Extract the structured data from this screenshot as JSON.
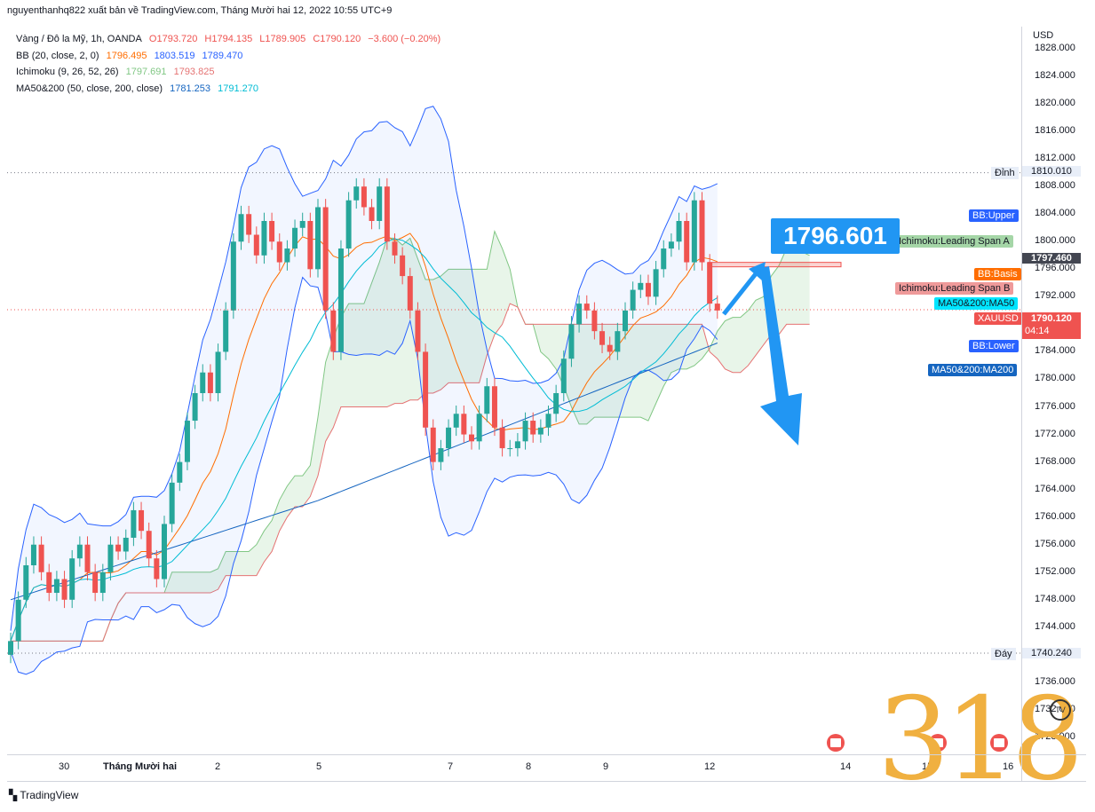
{
  "header": {
    "text": "nguyenthanhq822 xuất bản về TradingView.com, Tháng Mười hai 12, 2022 10:55 UTC+9"
  },
  "legend": {
    "symbol": "Vàng / Đô la Mỹ, 1h, OANDA",
    "o": "O1793.720",
    "h": "H1794.135",
    "l": "L1789.905",
    "c": "C1790.120",
    "chg": "−3.600 (−0.20%)",
    "bb_name": "BB (20, close, 2, 0)",
    "bb_basis": "1796.495",
    "bb_upper": "1803.519",
    "bb_lower": "1789.470",
    "ichi_name": "Ichimoku (9, 26, 52, 26)",
    "ichi_a": "1797.691",
    "ichi_b": "1793.825",
    "ma_name": "MA50&200 (50, close, 200, close)",
    "ma50": "1781.253",
    "ma200": "1791.270"
  },
  "axis": {
    "currency": "USD",
    "ticks": [
      "1828.000",
      "1824.000",
      "1820.000",
      "1816.000",
      "1812.000",
      "1808.000",
      "1804.000",
      "1800.000",
      "1796.000",
      "1792.000",
      "1788.000",
      "1784.000",
      "1780.000",
      "1776.000",
      "1772.000",
      "1768.000",
      "1764.000",
      "1760.000",
      "1756.000",
      "1752.000",
      "1748.000",
      "1744.000",
      "1740.000",
      "1736.000",
      "1732.000",
      "1728.000"
    ],
    "x_labels": [
      {
        "text": "30",
        "bold": false
      },
      {
        "text": "Tháng Mười hai",
        "bold": true
      },
      {
        "text": "2",
        "bold": false
      },
      {
        "text": "5",
        "bold": false
      },
      {
        "text": "7",
        "bold": false
      },
      {
        "text": "8",
        "bold": false
      },
      {
        "text": "9",
        "bold": false
      },
      {
        "text": "12",
        "bold": false
      },
      {
        "text": "14",
        "bold": false
      },
      {
        "text": "15",
        "bold": false
      },
      {
        "text": "16",
        "bold": false
      }
    ]
  },
  "tags": {
    "high_label": "Đỉnh",
    "high_value": "1810.010",
    "low_label": "Đáy",
    "low_value": "1740.240",
    "bb_upper": "BB:Upper",
    "ichi_a": "Ichimoku:Leading Span A",
    "ichi_value": "1797.460",
    "bb_basis": "BB:Basis",
    "ichi_b": "Ichimoku:Leading Span B",
    "ma50": "MA50&200:MA50",
    "symbol": "XAUUSD",
    "last_price": "1790.120",
    "countdown": "04:14",
    "bb_lower": "BB:Lower",
    "ma200": "MA50&200:MA200"
  },
  "annotation": {
    "target": "1796.601"
  },
  "watermark": "318",
  "footer": {
    "brand": "TradingView"
  },
  "colors": {
    "up": "#26a69a",
    "down": "#ef5350",
    "bb_band": "#2962ff",
    "bb_basis": "#ff6d00",
    "ichi_a": "#81c784",
    "ichi_b": "#e57373",
    "ma50": "#00bcd4",
    "ma200": "#1565c0",
    "arrow": "#2196f3"
  },
  "chart_data": {
    "type": "candlestick",
    "symbol": "XAUUSD",
    "timeframe": "1h",
    "ylim": [
      1728,
      1830
    ],
    "high_marker": 1810.01,
    "low_marker": 1740.24,
    "last_close": 1790.12,
    "target_level": 1796.601,
    "closes": [
      1742,
      1748,
      1753,
      1756,
      1752,
      1749,
      1751,
      1748,
      1754,
      1756,
      1752,
      1749,
      1752,
      1756,
      1755,
      1757,
      1761,
      1758,
      1754,
      1751,
      1759,
      1765,
      1768,
      1774,
      1778,
      1781,
      1778,
      1784,
      1790,
      1800,
      1804,
      1801,
      1798,
      1803,
      1800,
      1797,
      1799,
      1802,
      1803,
      1796,
      1805,
      1790,
      1784,
      1799,
      1806,
      1808,
      1805,
      1803,
      1808,
      1800,
      1798,
      1795,
      1790,
      1784,
      1773,
      1768,
      1770,
      1773,
      1775,
      1772,
      1771,
      1775,
      1779,
      1773,
      1770,
      1770,
      1771,
      1774,
      1772,
      1773,
      1775,
      1778,
      1783,
      1788,
      1791,
      1790,
      1787,
      1785,
      1784,
      1787,
      1790,
      1793,
      1794,
      1792,
      1796,
      1799,
      1800,
      1803,
      1797,
      1806,
      1797,
      1791,
      1790
    ]
  }
}
